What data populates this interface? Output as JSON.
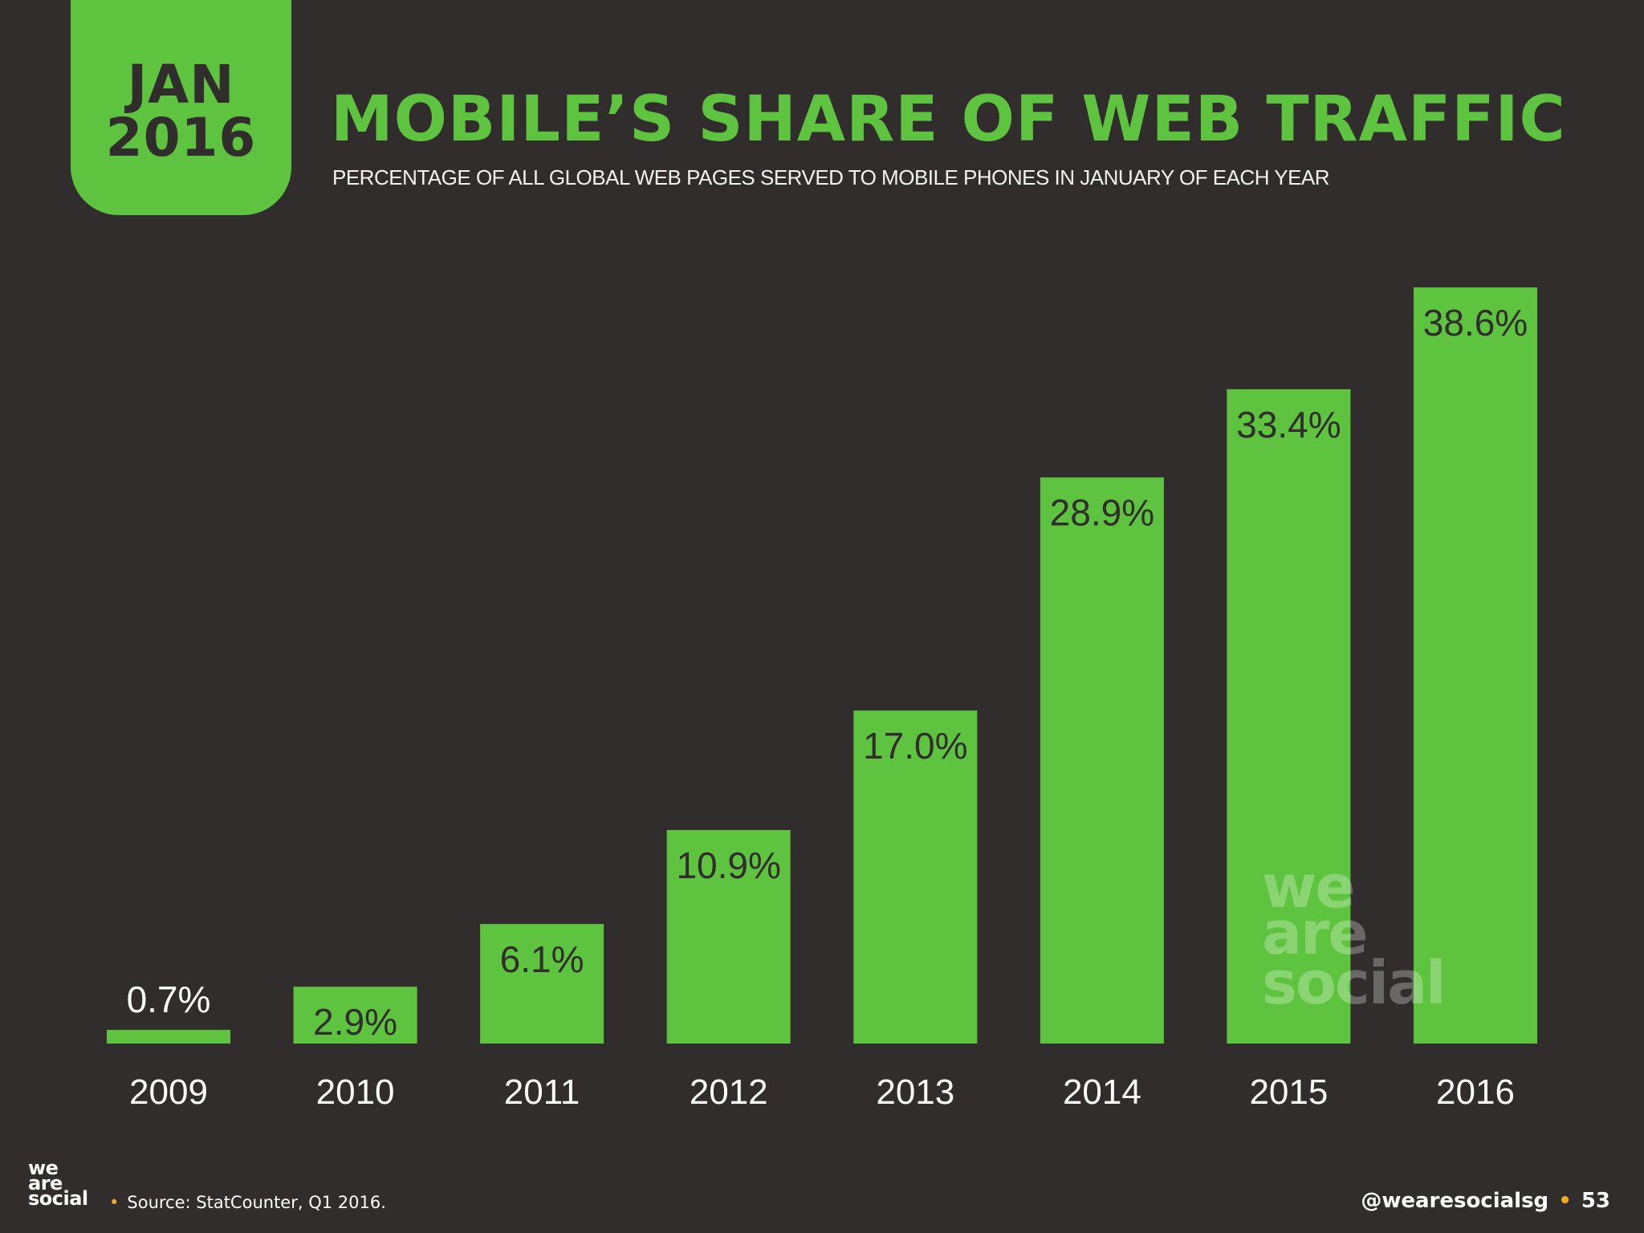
{
  "badge": {
    "month": "JAN",
    "year": "2016"
  },
  "header": {
    "title": "MOBILE’S SHARE OF WEB TRAFFIC",
    "subtitle": "PERCENTAGE OF ALL GLOBAL WEB PAGES SERVED TO MOBILE PHONES IN JANUARY OF EACH YEAR"
  },
  "chart_data": {
    "type": "bar",
    "title": "MOBILE’S SHARE OF WEB TRAFFIC",
    "subtitle": "PERCENTAGE OF ALL GLOBAL WEB PAGES SERVED TO MOBILE PHONES IN JANUARY OF EACH YEAR",
    "xlabel": "",
    "ylabel": "",
    "categories": [
      "2009",
      "2010",
      "2011",
      "2012",
      "2013",
      "2014",
      "2015",
      "2016"
    ],
    "values": [
      0.7,
      2.9,
      6.1,
      10.9,
      17.0,
      28.9,
      33.4,
      38.6
    ],
    "value_labels": [
      "0.7%",
      "2.9%",
      "6.1%",
      "10.9%",
      "17.0%",
      "28.9%",
      "33.4%",
      "38.6%"
    ],
    "ylim": [
      0,
      38.6
    ],
    "grid": false,
    "legend": "none",
    "bar_color": "#5ec43f"
  },
  "watermark": {
    "line1": "we",
    "line2": "are",
    "line3": "social"
  },
  "footer": {
    "logo": {
      "line1": "we",
      "line2": "are",
      "line3": "social"
    },
    "separator": "•",
    "source": "Source: StatCounter, Q1 2016.",
    "handle": "@wearesocialsg",
    "page_number": "53"
  },
  "colors": {
    "background": "#312d2d",
    "accent": "#5ec43f",
    "text": "#ffffff",
    "bullet": "#f5a623"
  }
}
